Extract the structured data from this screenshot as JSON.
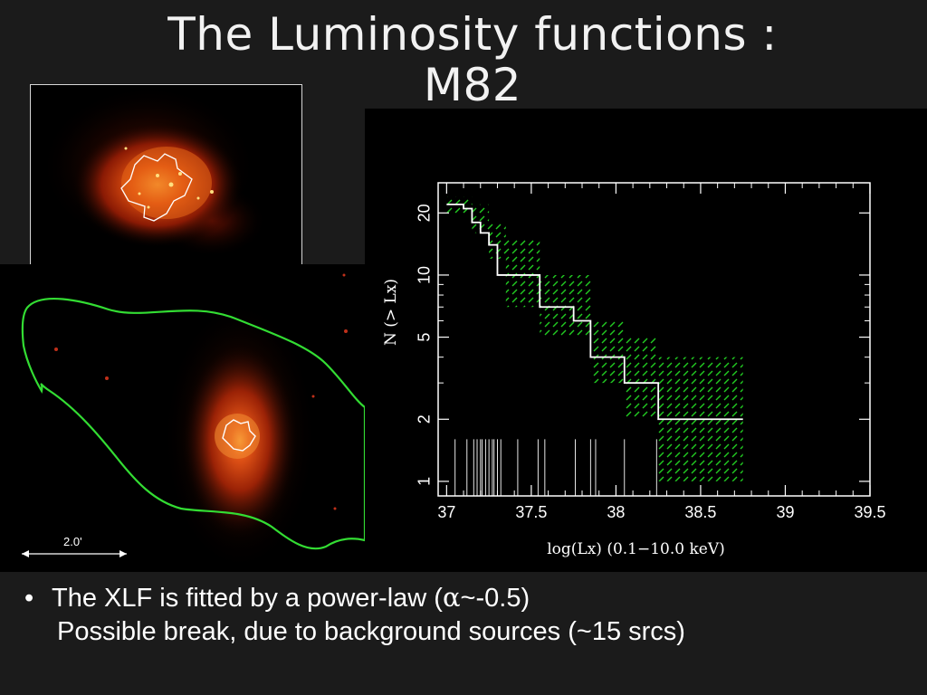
{
  "title": {
    "line1": "The Luminosity functions :",
    "line2": "M82"
  },
  "images": {
    "main_scale_bar_label": "2.0'"
  },
  "bullet": {
    "line1_prefix": "The XLF is fitted by a power-law (",
    "alpha_symbol": "α",
    "line1_suffix": "~-0.5)",
    "line2": "Possible break, due to background sources (~15 srcs)"
  },
  "colors": {
    "background": "#1b1b1b",
    "step_line": "#ffffff",
    "confidence_hatch": "#22cc22",
    "region_contour": "#33dd33"
  },
  "chart_data": {
    "type": "line",
    "xlabel": "log(Lx)  (0.1−10.0 keV)",
    "ylabel": "N (> Lx)",
    "xlim": [
      36.95,
      39.5
    ],
    "ylim": [
      0.85,
      28
    ],
    "yscale": "log",
    "x_ticks": [
      "37",
      "37.5",
      "38",
      "38.5",
      "39",
      "39.5"
    ],
    "x_tick_values": [
      37,
      37.5,
      38,
      38.5,
      39,
      39.5
    ],
    "y_ticks": [
      "1",
      "2",
      "5",
      "10",
      "20"
    ],
    "y_tick_values": [
      1,
      2,
      5,
      10,
      20
    ],
    "series": [
      {
        "kind": "cumulative-step",
        "x": [
          37.0,
          37.1,
          37.15,
          37.2,
          37.25,
          37.3,
          37.55,
          37.75,
          37.85,
          38.05,
          38.25,
          38.75
        ],
        "y": [
          22,
          21,
          18,
          16,
          14,
          10,
          7,
          6,
          4,
          3,
          2,
          2
        ]
      }
    ],
    "confidence_band": {
      "x": [
        37.0,
        37.15,
        37.25,
        37.35,
        37.55,
        37.85,
        38.05,
        38.25,
        38.75
      ],
      "upper": [
        24,
        22,
        18,
        15,
        10,
        6,
        5,
        4,
        4
      ],
      "lower": [
        20,
        16,
        12,
        7,
        5,
        3,
        2,
        1,
        1
      ]
    },
    "source_lines_x": [
      37.05,
      37.12,
      37.16,
      37.18,
      37.2,
      37.21,
      37.23,
      37.25,
      37.27,
      37.28,
      37.3,
      37.32,
      37.42,
      37.54,
      37.58,
      37.76,
      37.85,
      37.88,
      38.05,
      38.24
    ]
  }
}
